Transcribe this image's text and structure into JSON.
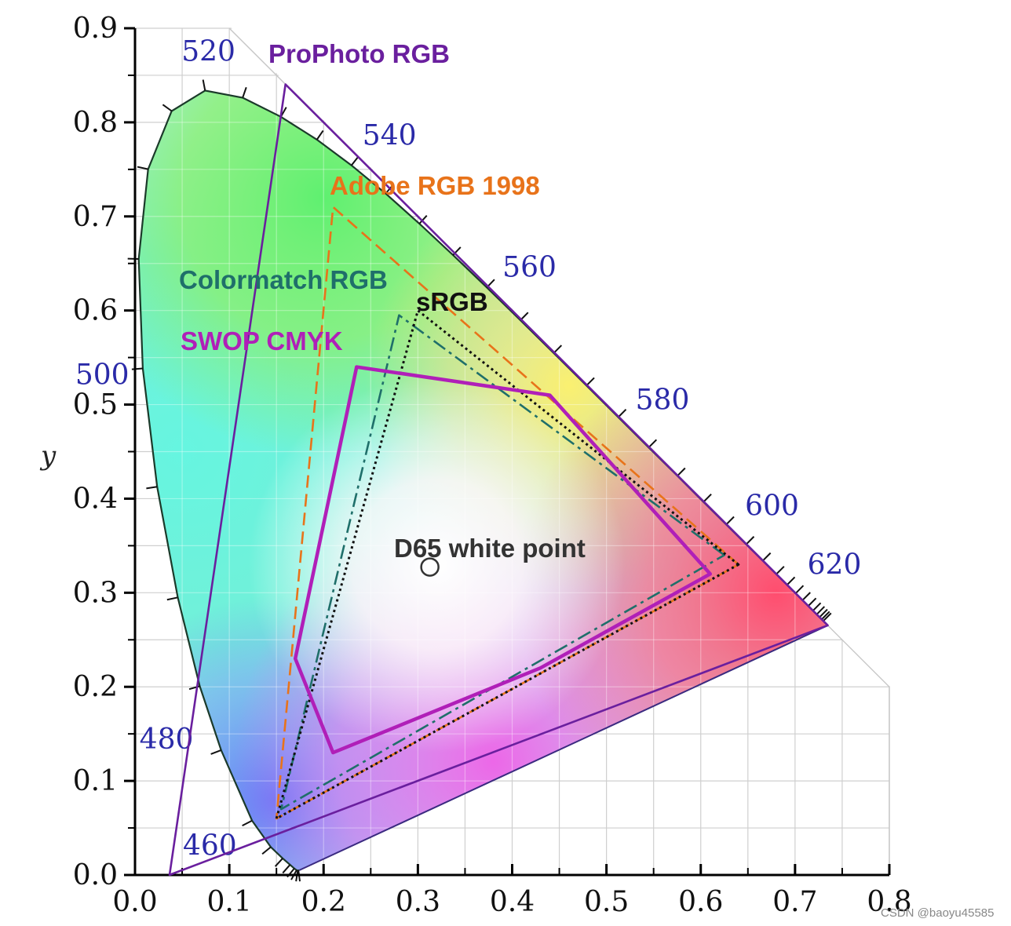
{
  "chart_data": {
    "type": "chromaticity-diagram",
    "title": "",
    "xlabel": "",
    "ylabel": "y",
    "xlim": [
      0,
      0.8
    ],
    "ylim": [
      0,
      0.9
    ],
    "grid": true,
    "x_ticks": [
      {
        "value": 0.0,
        "label": "0.0"
      },
      {
        "value": 0.1,
        "label": "0.1"
      },
      {
        "value": 0.2,
        "label": "0.2"
      },
      {
        "value": 0.3,
        "label": "0.3"
      },
      {
        "value": 0.4,
        "label": "0.4"
      },
      {
        "value": 0.5,
        "label": "0.5"
      },
      {
        "value": 0.6,
        "label": "0.6"
      },
      {
        "value": 0.7,
        "label": "0.7"
      },
      {
        "value": 0.8,
        "label": "0.8"
      }
    ],
    "y_ticks": [
      {
        "value": 0.0,
        "label": "0.0"
      },
      {
        "value": 0.1,
        "label": "0.1"
      },
      {
        "value": 0.2,
        "label": "0.2"
      },
      {
        "value": 0.3,
        "label": "0.3"
      },
      {
        "value": 0.4,
        "label": "0.4"
      },
      {
        "value": 0.5,
        "label": "0.5"
      },
      {
        "value": 0.6,
        "label": "0.6"
      },
      {
        "value": 0.7,
        "label": "0.7"
      },
      {
        "value": 0.8,
        "label": "0.8"
      },
      {
        "value": 0.9,
        "label": "0.9"
      }
    ],
    "spectral_locus": [
      [
        0.1741,
        0.005
      ],
      [
        0.1733,
        0.0048
      ],
      [
        0.1726,
        0.0048
      ],
      [
        0.1714,
        0.0051
      ],
      [
        0.1689,
        0.0069
      ],
      [
        0.1644,
        0.0109
      ],
      [
        0.1566,
        0.0177
      ],
      [
        0.144,
        0.0297
      ],
      [
        0.1241,
        0.0578
      ],
      [
        0.0913,
        0.1327
      ],
      [
        0.0687,
        0.2007
      ],
      [
        0.0454,
        0.295
      ],
      [
        0.0235,
        0.4127
      ],
      [
        0.0082,
        0.5384
      ],
      [
        0.0039,
        0.6548
      ],
      [
        0.0139,
        0.7502
      ],
      [
        0.0389,
        0.812
      ],
      [
        0.0743,
        0.8338
      ],
      [
        0.1142,
        0.8262
      ],
      [
        0.1547,
        0.8059
      ],
      [
        0.1929,
        0.7816
      ],
      [
        0.2296,
        0.7543
      ],
      [
        0.2658,
        0.7243
      ],
      [
        0.3016,
        0.6923
      ],
      [
        0.3373,
        0.6589
      ],
      [
        0.3731,
        0.6245
      ],
      [
        0.4087,
        0.5896
      ],
      [
        0.4441,
        0.5547
      ],
      [
        0.4788,
        0.5202
      ],
      [
        0.5125,
        0.4866
      ],
      [
        0.5448,
        0.4544
      ],
      [
        0.5752,
        0.4242
      ],
      [
        0.6029,
        0.3965
      ],
      [
        0.627,
        0.3725
      ],
      [
        0.6482,
        0.3514
      ],
      [
        0.6658,
        0.334
      ],
      [
        0.6801,
        0.3197
      ],
      [
        0.6915,
        0.3083
      ],
      [
        0.7006,
        0.2993
      ],
      [
        0.7079,
        0.292
      ],
      [
        0.714,
        0.2859
      ],
      [
        0.719,
        0.2809
      ],
      [
        0.723,
        0.277
      ],
      [
        0.726,
        0.274
      ],
      [
        0.7283,
        0.2717
      ],
      [
        0.73,
        0.27
      ],
      [
        0.7347,
        0.2653
      ]
    ],
    "wavelength_labels": [
      {
        "label": "460",
        "x": 0.144,
        "y": 0.0297
      },
      {
        "label": "480",
        "x": 0.0913,
        "y": 0.1327
      },
      {
        "label": "500",
        "x": 0.0082,
        "y": 0.5384
      },
      {
        "label": "520",
        "x": 0.0743,
        "y": 0.8338
      },
      {
        "label": "540",
        "x": 0.2296,
        "y": 0.7543
      },
      {
        "label": "560",
        "x": 0.3731,
        "y": 0.6245
      },
      {
        "label": "580",
        "x": 0.5125,
        "y": 0.4866
      },
      {
        "label": "600",
        "x": 0.627,
        "y": 0.3725
      },
      {
        "label": "620",
        "x": 0.6915,
        "y": 0.3083
      }
    ],
    "series": [
      {
        "name": "ProPhoto RGB",
        "color": "#6a1f9e",
        "style": "solid",
        "points": [
          [
            0.7347,
            0.2653
          ],
          [
            0.1596,
            0.8404
          ],
          [
            0.0366,
            0.0001
          ]
        ]
      },
      {
        "name": "Adobe RGB 1998",
        "color": "#e8731a",
        "style": "dashed",
        "points": [
          [
            0.64,
            0.33
          ],
          [
            0.21,
            0.71
          ],
          [
            0.15,
            0.06
          ]
        ]
      },
      {
        "name": "Colormatch RGB",
        "color": "#1f6f6a",
        "style": "dashdot",
        "points": [
          [
            0.625,
            0.34
          ],
          [
            0.28,
            0.595
          ],
          [
            0.155,
            0.07
          ]
        ]
      },
      {
        "name": "sRGB",
        "color": "#111111",
        "style": "dotted",
        "points": [
          [
            0.64,
            0.33
          ],
          [
            0.3,
            0.6
          ],
          [
            0.15,
            0.06
          ]
        ]
      },
      {
        "name": "SWOP CMYK",
        "color": "#b01fb8",
        "style": "solid",
        "points": [
          [
            0.235,
            0.54
          ],
          [
            0.44,
            0.51
          ],
          [
            0.61,
            0.32
          ],
          [
            0.43,
            0.22
          ],
          [
            0.21,
            0.13
          ],
          [
            0.17,
            0.23
          ]
        ]
      }
    ],
    "white_point": {
      "name": "D65 white point",
      "x": 0.3127,
      "y": 0.329
    }
  },
  "watermark": "CSDN @baoyu45585"
}
